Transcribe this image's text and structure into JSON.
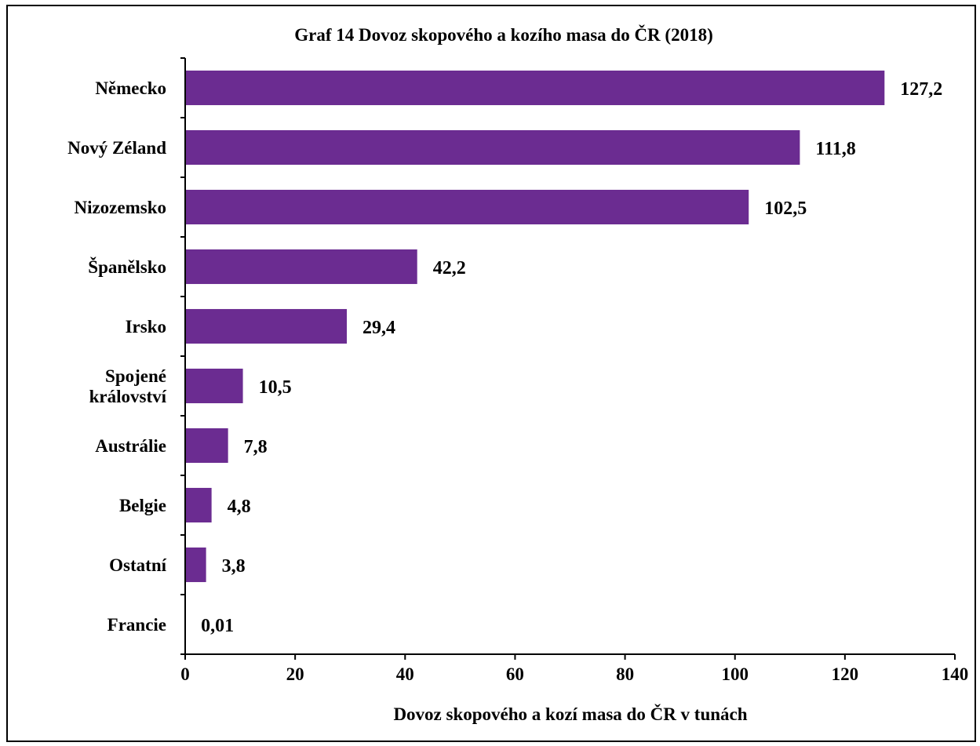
{
  "chart_data": {
    "type": "bar",
    "orientation": "horizontal",
    "title": "Graf 14 Dovoz skopového a kozího masa do ČR (2018)",
    "xlabel": "Dovoz skopového a kozí masa do ČR v tunách",
    "ylabel": "",
    "xlim": [
      0,
      140
    ],
    "xticks": [
      "0",
      "20",
      "40",
      "60",
      "80",
      "100",
      "120",
      "140"
    ],
    "categories": [
      [
        "Německo"
      ],
      [
        "Nový Zéland"
      ],
      [
        "Nizozemsko"
      ],
      [
        "Španělsko"
      ],
      [
        "Irsko"
      ],
      [
        "Spojené",
        "království"
      ],
      [
        "Austrálie"
      ],
      [
        "Belgie"
      ],
      [
        "Ostatní"
      ],
      [
        "Francie"
      ]
    ],
    "values": [
      127.2,
      111.8,
      102.5,
      42.2,
      29.4,
      10.5,
      7.8,
      4.8,
      3.8,
      0.01
    ],
    "data_labels": [
      "127,2",
      "111,8",
      "102,5",
      "42,2",
      "29,4",
      "10,5",
      "7,8",
      "4,8",
      "3,8",
      "0,01"
    ],
    "bar_color": "#6B2C91",
    "grid": false,
    "legend": "none"
  }
}
